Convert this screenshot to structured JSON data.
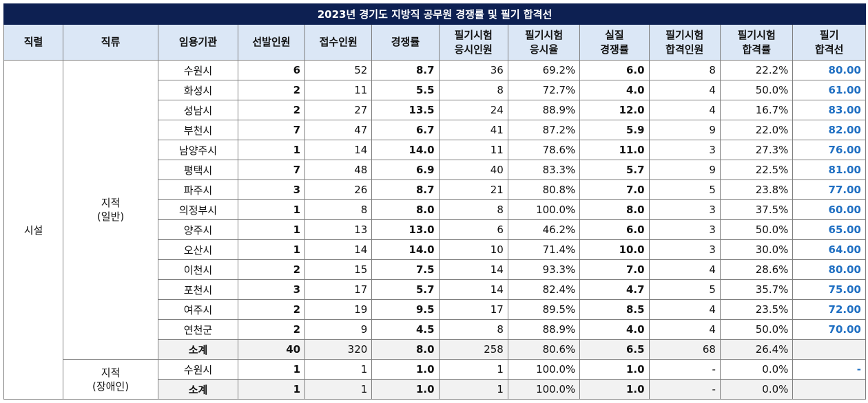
{
  "title": "2023년 경기도 지방직 공무원 경쟁률 및 필기 합격선",
  "headers": {
    "jikryeol": "직렬",
    "jikryu": "직류",
    "agency": "임용기관",
    "selected": "선발인원",
    "applied": "접수인원",
    "ratio": "경쟁률",
    "exam_takers_1": "필기시험",
    "exam_takers_2": "응시인원",
    "exam_rate_1": "필기시험",
    "exam_rate_2": "응시율",
    "actual_1": "실질",
    "actual_2": "경쟁률",
    "passed_1": "필기시험",
    "passed_2": "합격인원",
    "pass_rate_1": "필기시험",
    "pass_rate_2": "합격률",
    "cutoff_1": "필기",
    "cutoff_2": "합격선"
  },
  "jikryeol_value": "시설",
  "group1": {
    "jikryu_line1": "지적",
    "jikryu_line2": "(일반)",
    "rows": [
      {
        "agency": "수원시",
        "selected": "6",
        "applied": "52",
        "ratio": "8.7",
        "takers": "36",
        "take_rate": "69.2%",
        "actual": "6.0",
        "passed": "8",
        "pass_rate": "22.2%",
        "cutoff": "80.00"
      },
      {
        "agency": "화성시",
        "selected": "2",
        "applied": "11",
        "ratio": "5.5",
        "takers": "8",
        "take_rate": "72.7%",
        "actual": "4.0",
        "passed": "4",
        "pass_rate": "50.0%",
        "cutoff": "61.00"
      },
      {
        "agency": "성남시",
        "selected": "2",
        "applied": "27",
        "ratio": "13.5",
        "takers": "24",
        "take_rate": "88.9%",
        "actual": "12.0",
        "passed": "4",
        "pass_rate": "16.7%",
        "cutoff": "83.00"
      },
      {
        "agency": "부천시",
        "selected": "7",
        "applied": "47",
        "ratio": "6.7",
        "takers": "41",
        "take_rate": "87.2%",
        "actual": "5.9",
        "passed": "9",
        "pass_rate": "22.0%",
        "cutoff": "82.00"
      },
      {
        "agency": "남양주시",
        "selected": "1",
        "applied": "14",
        "ratio": "14.0",
        "takers": "11",
        "take_rate": "78.6%",
        "actual": "11.0",
        "passed": "3",
        "pass_rate": "27.3%",
        "cutoff": "76.00"
      },
      {
        "agency": "평택시",
        "selected": "7",
        "applied": "48",
        "ratio": "6.9",
        "takers": "40",
        "take_rate": "83.3%",
        "actual": "5.7",
        "passed": "9",
        "pass_rate": "22.5%",
        "cutoff": "81.00"
      },
      {
        "agency": "파주시",
        "selected": "3",
        "applied": "26",
        "ratio": "8.7",
        "takers": "21",
        "take_rate": "80.8%",
        "actual": "7.0",
        "passed": "5",
        "pass_rate": "23.8%",
        "cutoff": "77.00"
      },
      {
        "agency": "의정부시",
        "selected": "1",
        "applied": "8",
        "ratio": "8.0",
        "takers": "8",
        "take_rate": "100.0%",
        "actual": "8.0",
        "passed": "3",
        "pass_rate": "37.5%",
        "cutoff": "60.00"
      },
      {
        "agency": "양주시",
        "selected": "1",
        "applied": "13",
        "ratio": "13.0",
        "takers": "6",
        "take_rate": "46.2%",
        "actual": "6.0",
        "passed": "3",
        "pass_rate": "50.0%",
        "cutoff": "65.00"
      },
      {
        "agency": "오산시",
        "selected": "1",
        "applied": "14",
        "ratio": "14.0",
        "takers": "10",
        "take_rate": "71.4%",
        "actual": "10.0",
        "passed": "3",
        "pass_rate": "30.0%",
        "cutoff": "64.00"
      },
      {
        "agency": "이천시",
        "selected": "2",
        "applied": "15",
        "ratio": "7.5",
        "takers": "14",
        "take_rate": "93.3%",
        "actual": "7.0",
        "passed": "4",
        "pass_rate": "28.6%",
        "cutoff": "80.00"
      },
      {
        "agency": "포천시",
        "selected": "3",
        "applied": "17",
        "ratio": "5.7",
        "takers": "14",
        "take_rate": "82.4%",
        "actual": "4.7",
        "passed": "5",
        "pass_rate": "35.7%",
        "cutoff": "75.00"
      },
      {
        "agency": "여주시",
        "selected": "2",
        "applied": "19",
        "ratio": "9.5",
        "takers": "17",
        "take_rate": "89.5%",
        "actual": "8.5",
        "passed": "4",
        "pass_rate": "23.5%",
        "cutoff": "72.00"
      },
      {
        "agency": "연천군",
        "selected": "2",
        "applied": "9",
        "ratio": "4.5",
        "takers": "8",
        "take_rate": "88.9%",
        "actual": "4.0",
        "passed": "4",
        "pass_rate": "50.0%",
        "cutoff": "70.00"
      }
    ],
    "subtotal": {
      "label": "소계",
      "selected": "40",
      "applied": "320",
      "ratio": "8.0",
      "takers": "258",
      "take_rate": "80.6%",
      "actual": "6.5",
      "passed": "68",
      "pass_rate": "26.4%",
      "cutoff": ""
    }
  },
  "group2": {
    "jikryu_line1": "지적",
    "jikryu_line2": "(장애인)",
    "rows": [
      {
        "agency": "수원시",
        "selected": "1",
        "applied": "1",
        "ratio": "1.0",
        "takers": "1",
        "take_rate": "100.0%",
        "actual": "1.0",
        "passed": "-",
        "pass_rate": "0.0%",
        "cutoff": "-"
      }
    ],
    "subtotal": {
      "label": "소계",
      "selected": "1",
      "applied": "1",
      "ratio": "1.0",
      "takers": "1",
      "take_rate": "100.0%",
      "actual": "1.0",
      "passed": "-",
      "pass_rate": "0.0%",
      "cutoff": ""
    }
  },
  "colors": {
    "title_bg": "#0d2052",
    "header_bg": "#dbe7f6",
    "cutoff_text": "#1f6fc2",
    "subtotal_bg": "#f2f2f2"
  }
}
